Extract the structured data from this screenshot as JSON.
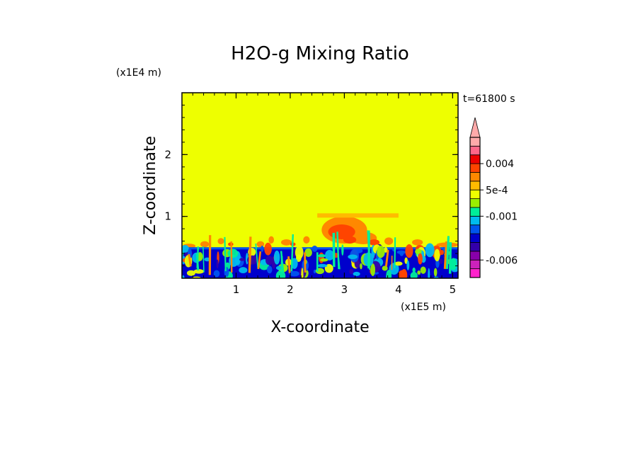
{
  "chart_data": {
    "type": "heatmap",
    "title": "H2O-g Mixing Ratio",
    "xlabel": "X-coordinate",
    "ylabel": "Z-coordinate",
    "x_scale_label": "(x1E5 m)",
    "y_scale_label": "(x1E4 m)",
    "time_label": "t=61800 s",
    "xlim": [
      0,
      5.1
    ],
    "ylim": [
      0,
      3.0
    ],
    "x_ticks": [
      "1",
      "2",
      "3",
      "4",
      "5"
    ],
    "x_tick_values": [
      1,
      2,
      3,
      4,
      5
    ],
    "y_ticks": [
      "1",
      "2"
    ],
    "y_tick_values": [
      1,
      2
    ],
    "background_level": "5e-4",
    "colorbar": {
      "colors": [
        "#ff22cc",
        "#cc22bb",
        "#8800aa",
        "#3300aa",
        "#0000cc",
        "#0055ee",
        "#00bbee",
        "#00ee99",
        "#99ee00",
        "#eeff00",
        "#ffbb00",
        "#ff8800",
        "#ff4400",
        "#ee0000",
        "#ff6688",
        "#ffaaaa"
      ],
      "labels": [
        {
          "text": "0.004",
          "level": 0.004
        },
        {
          "text": "5e-4",
          "level": 0.0005
        },
        {
          "text": "-0.001",
          "level": -0.001
        },
        {
          "text": "-0.006",
          "level": -0.006
        }
      ],
      "extend": "max"
    }
  }
}
